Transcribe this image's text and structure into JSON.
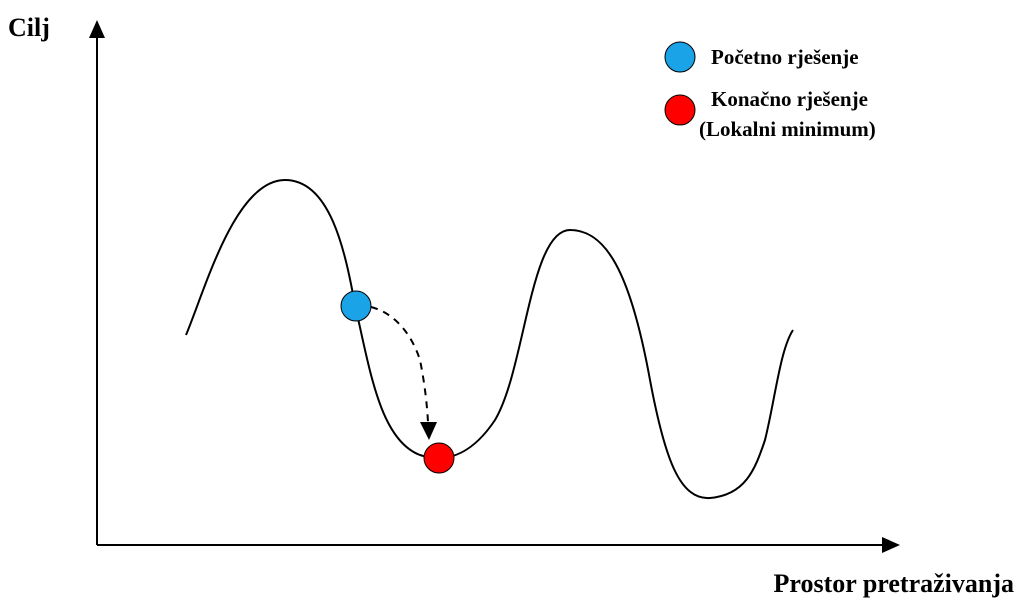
{
  "axes": {
    "y_label": "Cilj",
    "x_label": "Prostor pretraživanja"
  },
  "legend": {
    "start": {
      "label": "Početno rješenje",
      "color": "#1aa3e6"
    },
    "end": {
      "label_line1": "Konačno rješenje",
      "label_line2": "(Lokalni minimum)",
      "color": "#ff0000"
    }
  },
  "colors": {
    "axis": "#000000",
    "curve": "#000000",
    "arrow": "#000000",
    "background": "#ffffff"
  }
}
